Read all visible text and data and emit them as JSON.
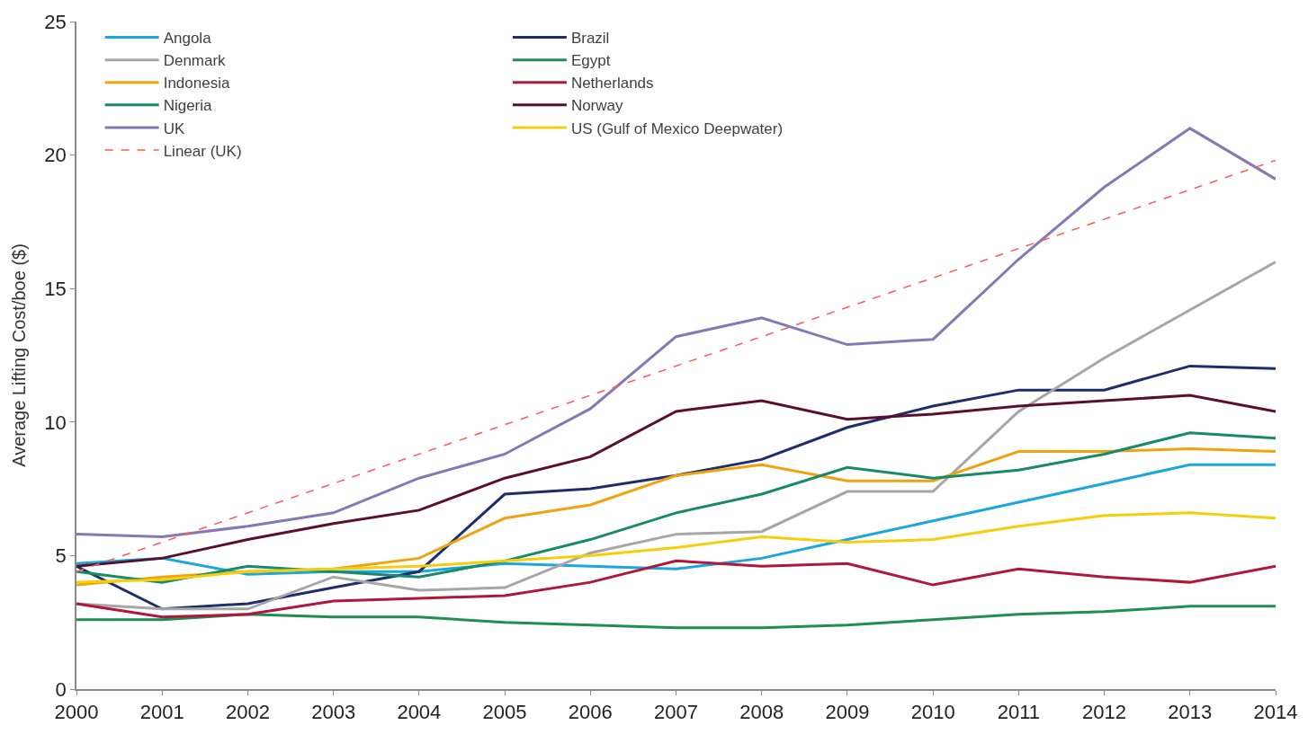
{
  "chart_data": {
    "type": "line",
    "ylabel": "Average Lifting Cost/boe ($)",
    "x": [
      2000,
      2001,
      2002,
      2003,
      2004,
      2005,
      2006,
      2007,
      2008,
      2009,
      2010,
      2011,
      2012,
      2013,
      2014
    ],
    "xlim": [
      2000,
      2014
    ],
    "xticks": [
      2000,
      2001,
      2002,
      2003,
      2004,
      2005,
      2006,
      2007,
      2008,
      2009,
      2010,
      2011,
      2012,
      2013,
      2014
    ],
    "ylim": [
      0,
      25
    ],
    "yticks": [
      0,
      5,
      10,
      15,
      20,
      25
    ],
    "legend": "top left",
    "marker": "none",
    "line_style": "solid",
    "series": [
      {
        "name": "Angola",
        "color": "#1aa7e0",
        "values": [
          4.7,
          4.9,
          4.3,
          4.4,
          4.4,
          4.7,
          4.6,
          4.5,
          4.9,
          5.6,
          6.3,
          7.0,
          7.7,
          8.4,
          8.4
        ]
      },
      {
        "name": "Brazil",
        "color": "#1f2d6b",
        "values": [
          4.6,
          3.0,
          3.2,
          3.8,
          4.4,
          7.3,
          7.5,
          8.0,
          8.6,
          9.8,
          10.6,
          11.2,
          11.2,
          12.1,
          12.0
        ]
      },
      {
        "name": "Denmark",
        "color": "#a6a6a6",
        "values": [
          3.2,
          3.0,
          3.0,
          4.2,
          3.7,
          3.8,
          5.1,
          5.8,
          5.9,
          7.4,
          7.4,
          10.4,
          12.4,
          14.2,
          16.0
        ]
      },
      {
        "name": "Egypt",
        "color": "#1e8f4e",
        "values": [
          2.6,
          2.6,
          2.8,
          2.7,
          2.7,
          2.5,
          2.4,
          2.3,
          2.3,
          2.4,
          2.6,
          2.8,
          2.9,
          3.1,
          3.1
        ]
      },
      {
        "name": "Indonesia",
        "color": "#f0a20f",
        "values": [
          3.9,
          4.2,
          4.4,
          4.5,
          4.9,
          6.4,
          6.9,
          8.0,
          8.4,
          7.8,
          7.8,
          8.9,
          8.9,
          9.0,
          8.9
        ]
      },
      {
        "name": "Netherlands",
        "color": "#b0173a",
        "values": [
          3.2,
          2.7,
          2.8,
          3.3,
          3.4,
          3.5,
          4.0,
          4.8,
          4.6,
          4.7,
          3.9,
          4.5,
          4.2,
          4.0,
          4.6
        ]
      },
      {
        "name": "Nigeria",
        "color": "#178a6c",
        "values": [
          4.4,
          4.0,
          4.6,
          4.4,
          4.2,
          4.8,
          5.6,
          6.6,
          7.3,
          8.3,
          7.9,
          8.2,
          8.8,
          9.6,
          9.4
        ]
      },
      {
        "name": "Norway",
        "color": "#5b0f2e",
        "values": [
          4.6,
          4.9,
          5.6,
          6.2,
          6.7,
          7.9,
          8.7,
          10.4,
          10.8,
          10.1,
          10.3,
          10.6,
          10.8,
          11.0,
          10.4
        ]
      },
      {
        "name": "UK",
        "color": "#8579b5",
        "values": [
          5.8,
          5.7,
          6.1,
          6.6,
          7.9,
          8.8,
          10.5,
          13.2,
          13.9,
          12.9,
          13.1,
          16.1,
          18.8,
          21.0,
          19.1
        ]
      },
      {
        "name": "US (Gulf of Mexico Deepwater)",
        "color": "#f5cf0a",
        "values": [
          4.0,
          4.1,
          4.4,
          4.5,
          4.6,
          4.8,
          5.0,
          5.3,
          5.7,
          5.5,
          5.6,
          6.1,
          6.5,
          6.6,
          6.4
        ]
      },
      {
        "name": "Linear (UK)",
        "color": "#ff5a5a",
        "type": "line",
        "line_style": "dashed",
        "x": [
          2000,
          2014
        ],
        "values": [
          4.4,
          19.8
        ]
      }
    ]
  }
}
